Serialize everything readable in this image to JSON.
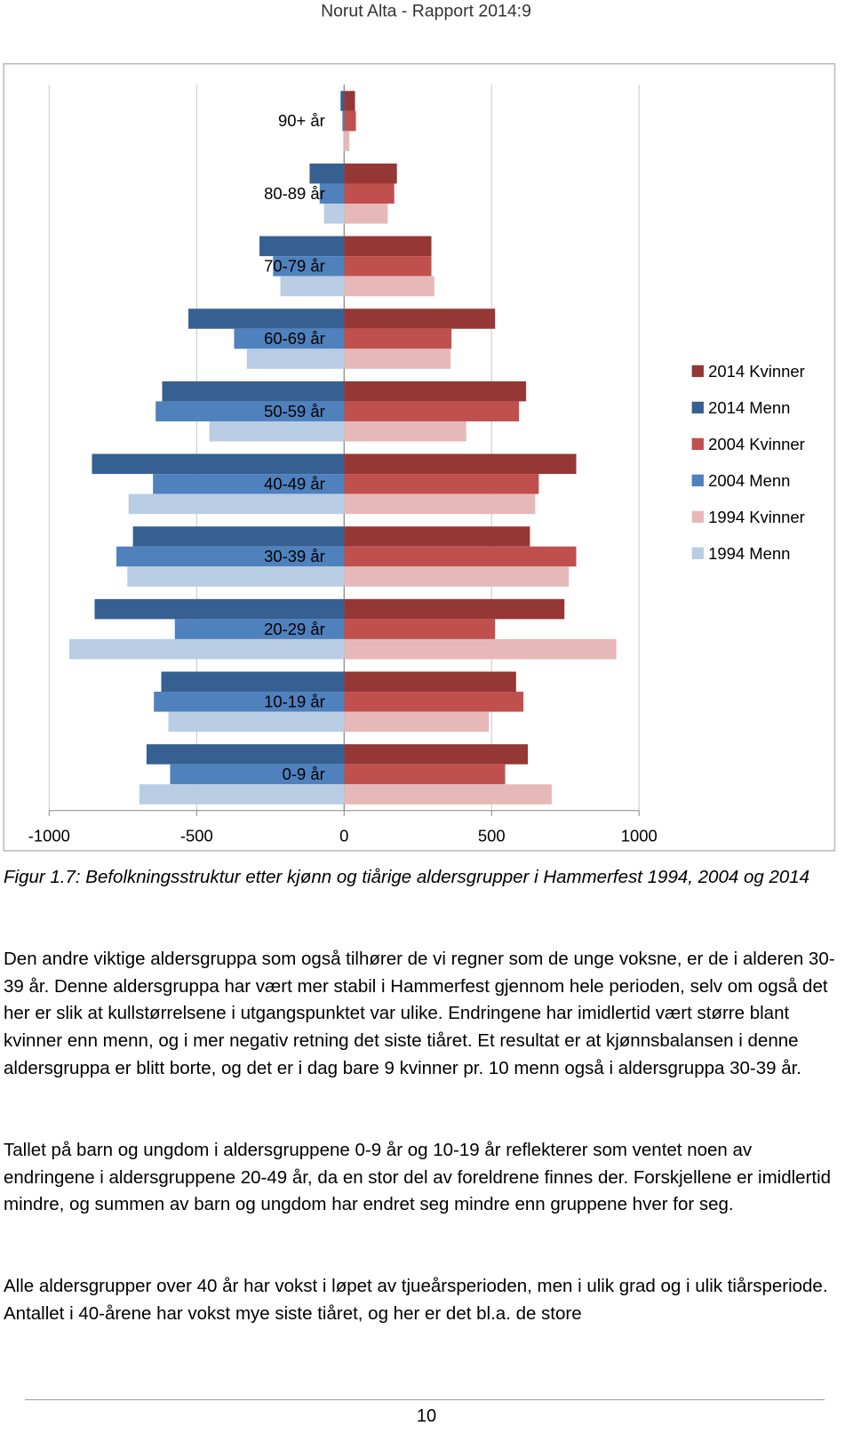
{
  "header": "Norut Alta - Rapport 2014:9",
  "chart_data": {
    "type": "bar",
    "orientation": "horizontal",
    "categories": [
      "90+ år",
      "80-89 år",
      "70-79 år",
      "60-69 år",
      "50-59 år",
      "40-49 år",
      "30-39 år",
      "20-29 år",
      "10-19 år",
      "0-9 år"
    ],
    "series": [
      {
        "name": "2014 Kvinner",
        "color": "#953735",
        "values": [
          37,
          179,
          296,
          512,
          617,
          787,
          630,
          747,
          583,
          623
        ]
      },
      {
        "name": "2014 Menn",
        "color": "#376092",
        "values": [
          -12,
          -117,
          -287,
          -528,
          -617,
          -855,
          -716,
          -846,
          -620,
          -670
        ]
      },
      {
        "name": "2004 Kvinner",
        "color": "#c0504d",
        "values": [
          40,
          170,
          296,
          364,
          593,
          660,
          787,
          512,
          608,
          546
        ]
      },
      {
        "name": "2004 Menn",
        "color": "#4f81bd",
        "values": [
          -6,
          -83,
          -241,
          -373,
          -639,
          -648,
          -772,
          -574,
          -645,
          -590
        ]
      },
      {
        "name": "1994 Kvinner",
        "color": "#e6b9b8",
        "values": [
          18,
          148,
          306,
          361,
          414,
          648,
          762,
          923,
          491,
          704
        ]
      },
      {
        "name": "1994 Menn",
        "color": "#b9cde5",
        "values": [
          -3,
          -68,
          -216,
          -330,
          -457,
          -731,
          -735,
          -932,
          -596,
          -694
        ]
      }
    ],
    "xlim": [
      -1000,
      1000
    ],
    "xticks": [
      -1000,
      -500,
      0,
      500,
      1000
    ],
    "grid": true,
    "legend": "right"
  },
  "caption": "Figur 1.7: Befolkningsstruktur etter kjønn og tiårige aldersgrupper i Hammerfest 1994, 2004 og 2014",
  "paragraphs": [
    "Den andre viktige aldersgruppa som også tilhører de vi regner som de unge voksne, er de i alderen 30-39 år. Denne aldersgruppa har vært mer stabil i Hammerfest gjennom hele perioden, selv om også det her er slik at kullstørrelsene i utgangspunktet var ulike. Endringene har imidlertid vært større blant kvinner enn menn, og i mer negativ retning det siste tiåret. Et resultat er at kjønnsbalansen i denne aldersgruppa er blitt borte, og det er i dag bare 9 kvinner pr. 10 menn også i aldersgruppa 30-39 år.",
    "Tallet på barn og ungdom i aldersgruppene 0-9 år og 10-19 år reflekterer som ventet noen av endringene i aldersgruppene 20-49 år, da en stor del av foreldrene finnes der. Forskjellene er imidlertid mindre, og summen av barn og ungdom har endret seg mindre enn gruppene hver for seg.",
    "Alle aldersgrupper over 40 år har vokst i løpet av tjueårsperioden, men i ulik grad og i ulik tiårsperiode. Antallet i 40-årene har vokst mye siste tiåret, og her er det bl.a. de store"
  ],
  "page_number": "10"
}
